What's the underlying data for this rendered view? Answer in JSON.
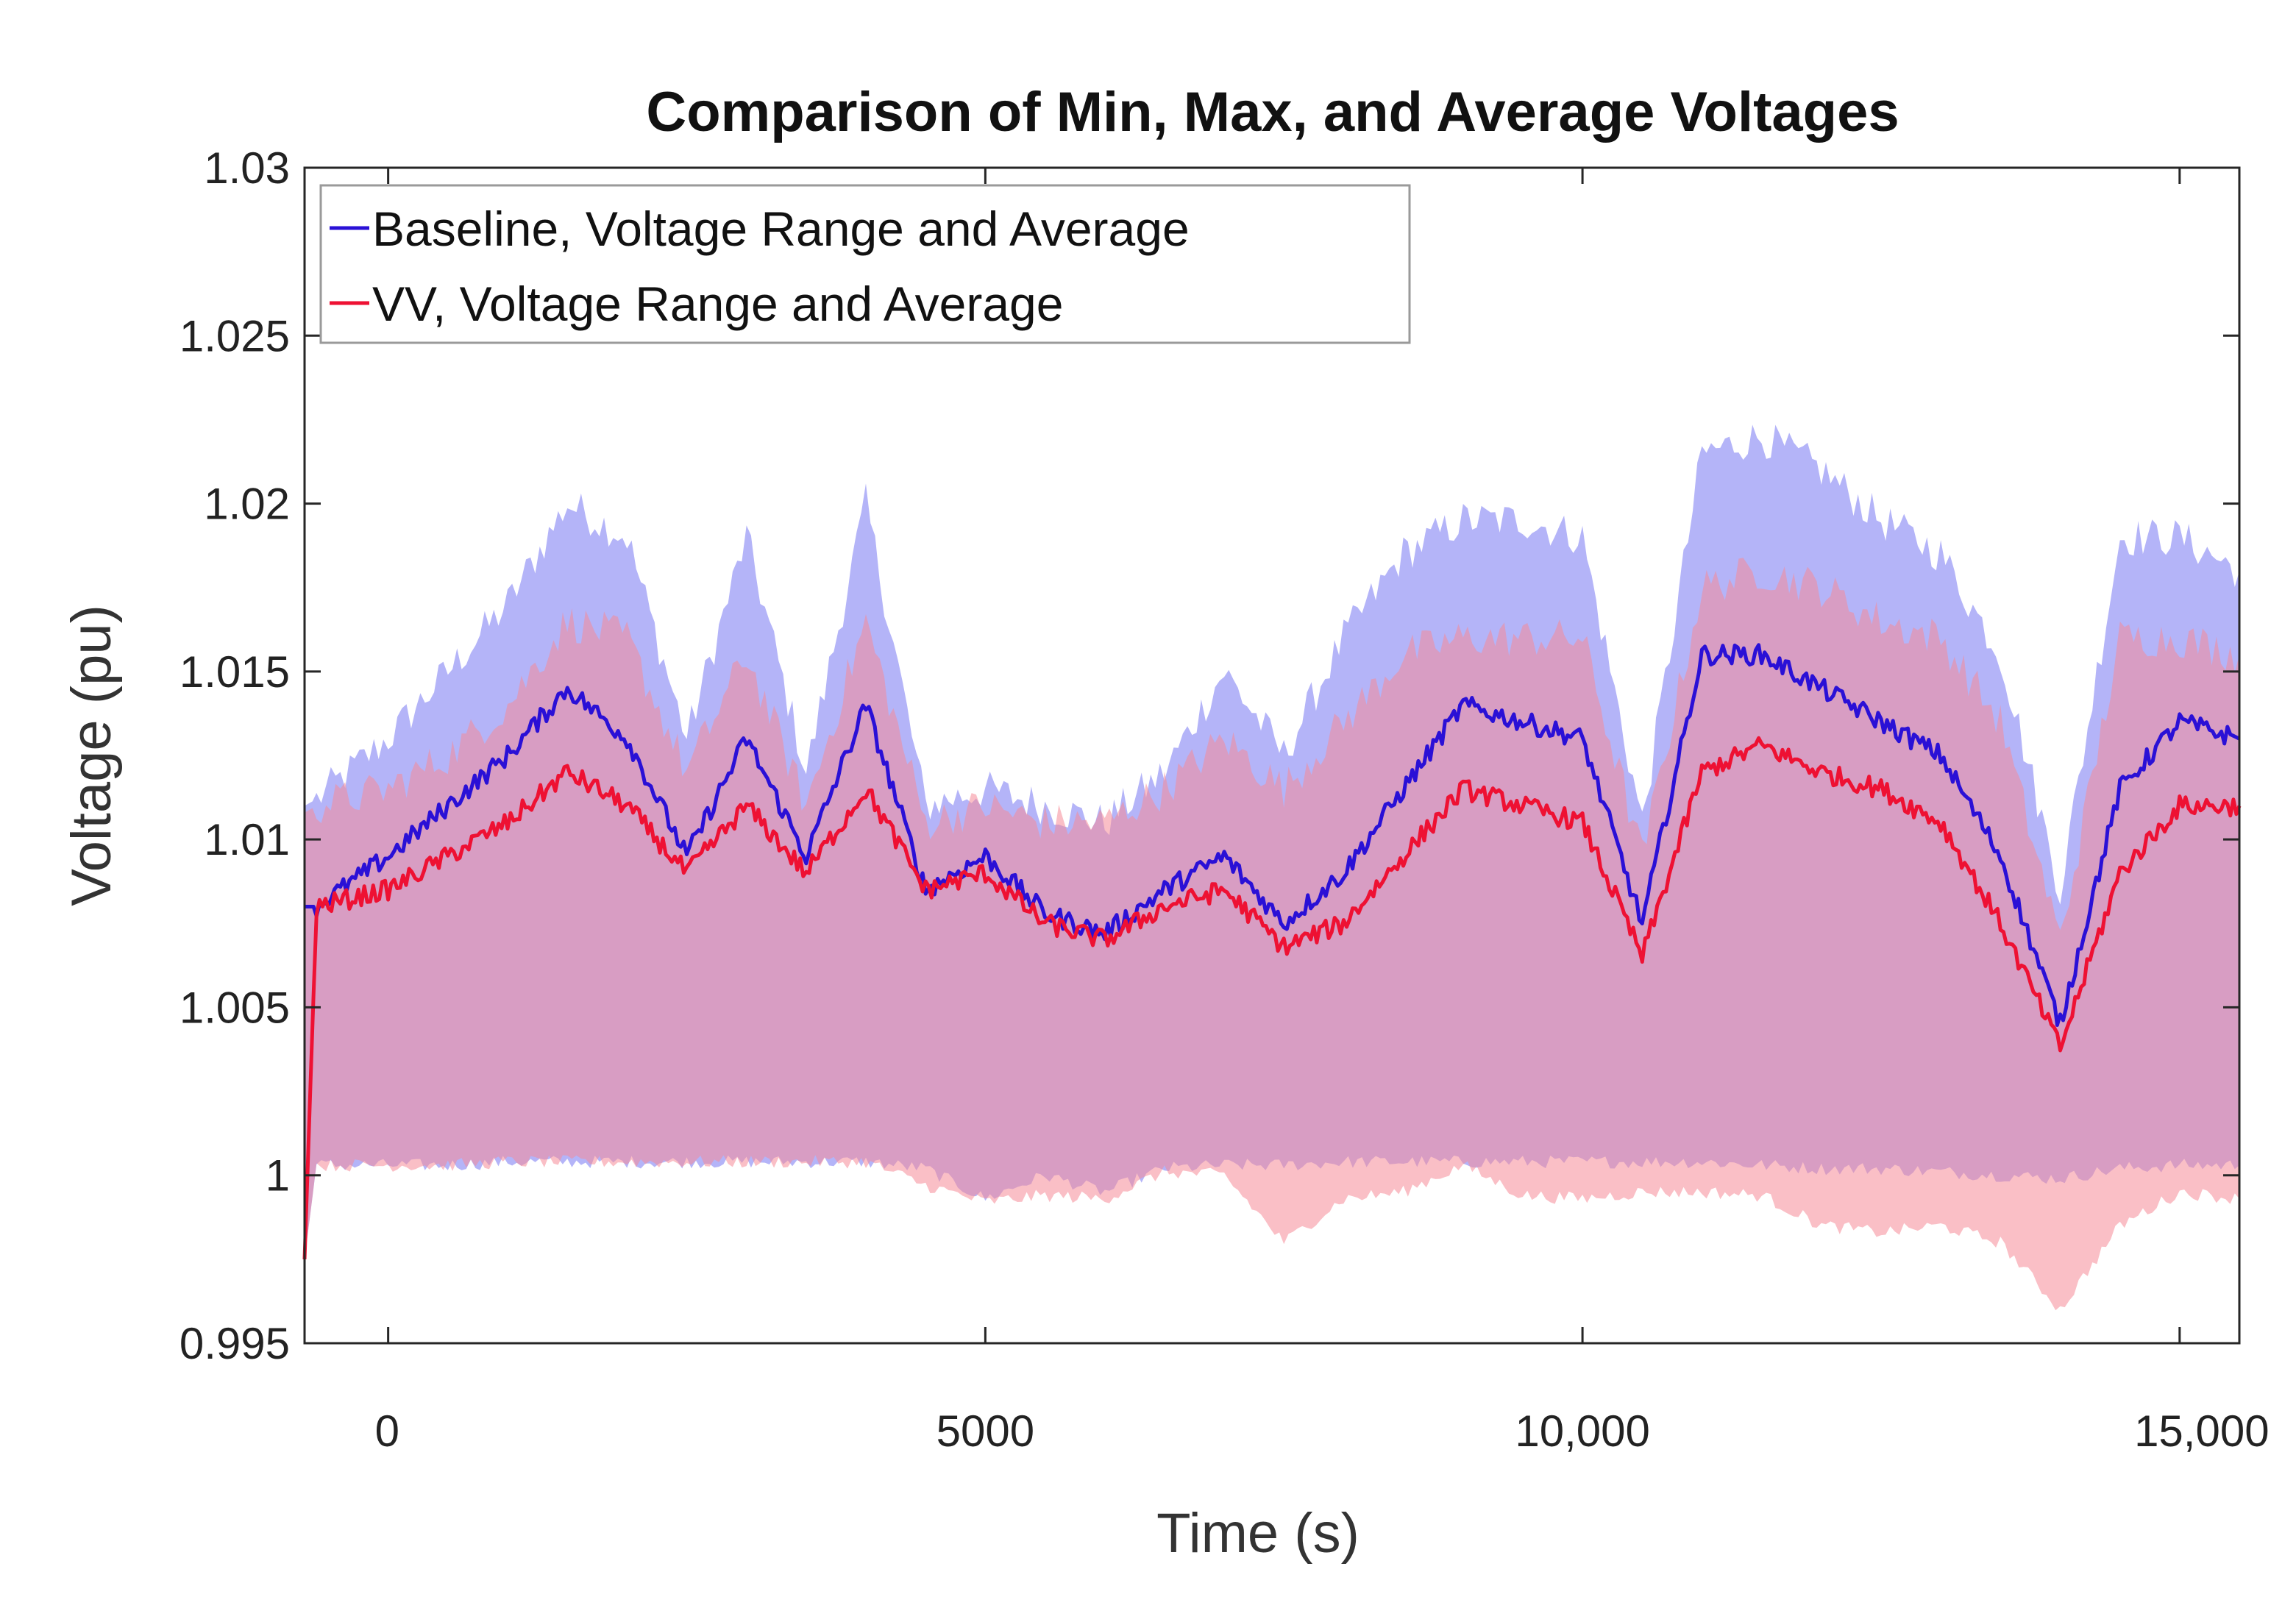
{
  "chart_data": {
    "type": "area",
    "title": "Comparison of Min, Max, and Average Voltages",
    "xlabel": "Time (s)",
    "ylabel": "Voltage (pu)",
    "xlim": [
      -700,
      15500
    ],
    "ylim": [
      0.995,
      1.03
    ],
    "xticks": [
      0,
      5000,
      10000,
      15000
    ],
    "xtick_labels": [
      "0",
      "5000",
      "10,000",
      "15,000"
    ],
    "yticks": [
      0.995,
      1,
      1.005,
      1.01,
      1.015,
      1.02,
      1.025,
      1.03
    ],
    "ytick_labels": [
      "0.995",
      "1",
      "1.005",
      "1.01",
      "1.015",
      "1.02",
      "1.025",
      "1.03"
    ],
    "legend_position": "top-left",
    "series": [
      {
        "name": "Baseline, Voltage Range and Average",
        "color": "#2a10d6",
        "band_color": "#8c8cf5",
        "x": [
          -700,
          -600,
          0,
          500,
          1000,
          1500,
          2000,
          2500,
          3000,
          3500,
          4000,
          4500,
          5000,
          5500,
          6000,
          6500,
          7000,
          7500,
          8000,
          8500,
          9000,
          9500,
          10000,
          10500,
          11000,
          11500,
          12000,
          12500,
          13000,
          13500,
          14000,
          14500,
          15000,
          15500
        ],
        "avg": [
          1.008,
          1.008,
          1.0095,
          1.011,
          1.0125,
          1.0145,
          1.013,
          1.0095,
          1.013,
          1.0095,
          1.014,
          1.0085,
          1.0095,
          1.0078,
          1.0072,
          1.0085,
          1.0095,
          1.0075,
          1.009,
          1.0115,
          1.014,
          1.0135,
          1.013,
          1.0075,
          1.0155,
          1.0155,
          1.0145,
          1.0135,
          1.0125,
          1.0095,
          1.0045,
          1.0115,
          1.0135,
          1.013
        ],
        "max": [
          1.011,
          1.0112,
          1.013,
          1.015,
          1.017,
          1.02,
          1.019,
          1.013,
          1.019,
          1.012,
          1.02,
          1.011,
          1.0115,
          1.011,
          1.0105,
          1.012,
          1.015,
          1.0125,
          1.016,
          1.0185,
          1.0195,
          1.0195,
          1.019,
          1.0105,
          1.0215,
          1.022,
          1.021,
          1.0195,
          1.0185,
          1.0155,
          1.0085,
          1.019,
          1.019,
          1.018
        ],
        "min": [
          0.9975,
          1.0003,
          1.0003,
          1.0003,
          1.0004,
          1.0004,
          1.0004,
          1.0004,
          1.0004,
          1.0004,
          1.0004,
          1.0002,
          0.9993,
          1.0,
          0.9995,
          1.0002,
          1.0003,
          1.0003,
          1.0004,
          1.0004,
          1.0004,
          1.0004,
          1.0004,
          1.0004,
          1.0004,
          1.0003,
          1.0002,
          1.0002,
          1.0001,
          1.0,
          0.9999,
          1.0002,
          1.0003,
          1.0003
        ]
      },
      {
        "name": "VV, Voltage Range and Average",
        "color": "#ee1133",
        "band_color": "#f58a98",
        "x": [
          -700,
          -600,
          0,
          500,
          1000,
          1500,
          2000,
          2500,
          3000,
          3500,
          4000,
          4500,
          5000,
          5500,
          6000,
          6500,
          7000,
          7500,
          8000,
          8500,
          9000,
          9500,
          10000,
          10500,
          11000,
          11500,
          12000,
          12500,
          13000,
          13500,
          14000,
          14500,
          15000,
          15500
        ],
        "avg": [
          0.9975,
          1.008,
          1.0085,
          1.0095,
          1.0105,
          1.012,
          1.011,
          1.009,
          1.011,
          1.009,
          1.0115,
          1.0085,
          1.009,
          1.0075,
          1.007,
          1.008,
          1.0085,
          1.0068,
          1.0075,
          1.0095,
          1.0115,
          1.011,
          1.0105,
          1.0065,
          1.012,
          1.0128,
          1.012,
          1.0115,
          1.0105,
          1.0075,
          1.0038,
          1.009,
          1.011,
          1.011
        ],
        "max": [
          1.0108,
          1.011,
          1.0115,
          1.0125,
          1.014,
          1.0165,
          1.016,
          1.012,
          1.0155,
          1.011,
          1.0165,
          1.0105,
          1.011,
          1.0105,
          1.0105,
          1.0115,
          1.013,
          1.0115,
          1.0135,
          1.0155,
          1.016,
          1.016,
          1.016,
          1.0095,
          1.0175,
          1.018,
          1.0175,
          1.0165,
          1.016,
          1.0135,
          1.007,
          1.016,
          1.016,
          1.0155
        ],
        "min": [
          0.9975,
          1.0003,
          1.0003,
          1.0003,
          1.0004,
          1.0004,
          1.0004,
          1.0004,
          1.0004,
          1.0004,
          1.0004,
          0.9997,
          0.9992,
          0.9994,
          0.9993,
          1.0001,
          1.0,
          0.998,
          0.9993,
          0.9995,
          1.0003,
          0.9994,
          0.9993,
          0.9995,
          0.9995,
          0.9994,
          0.9985,
          0.9983,
          0.9985,
          0.998,
          0.996,
          0.9985,
          0.9995,
          0.9993
        ]
      }
    ]
  }
}
